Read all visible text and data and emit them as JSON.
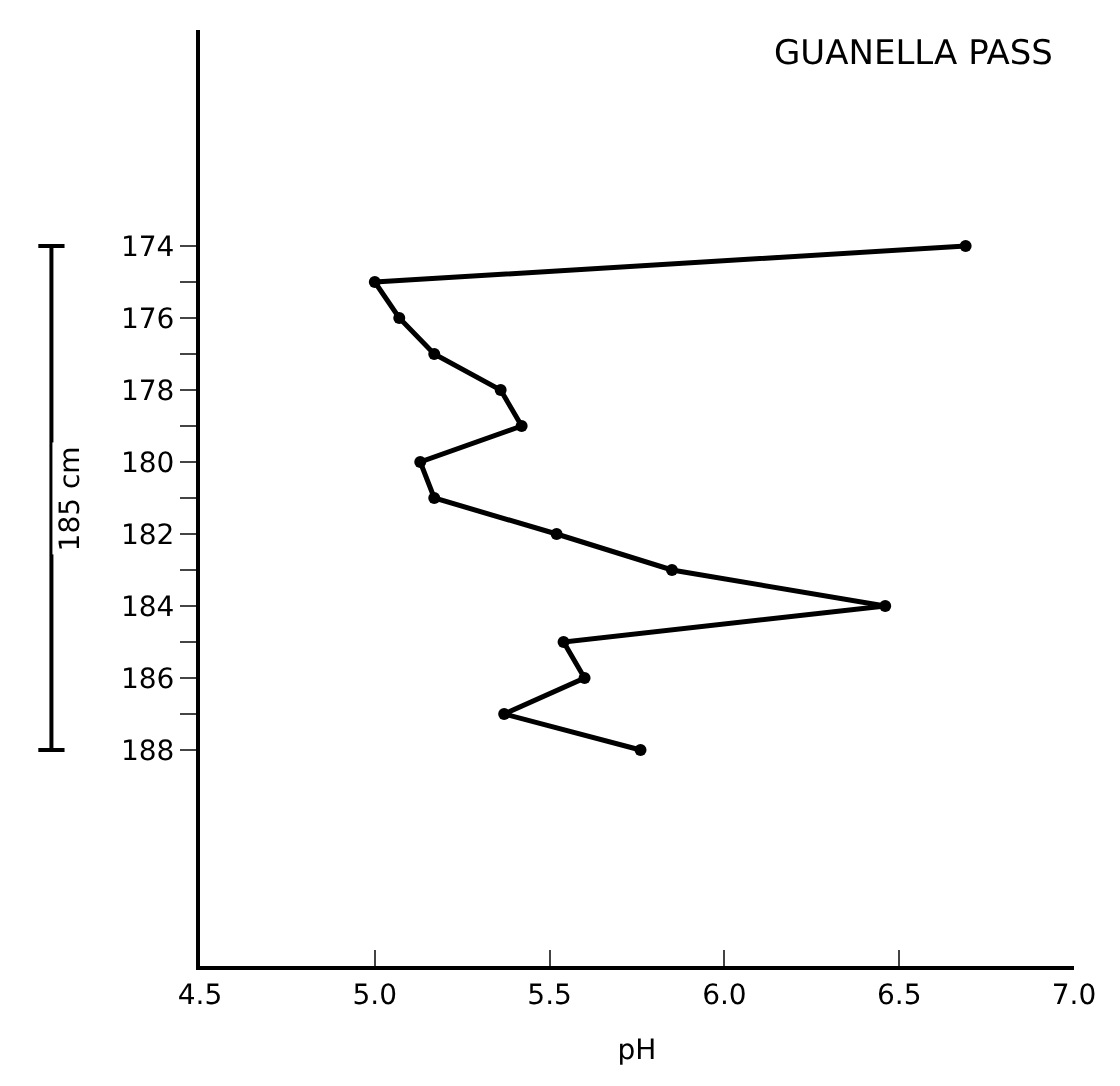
{
  "chart_data": {
    "type": "line",
    "title": "GUANELLA PASS",
    "xlabel": "pH",
    "x": [
      6.69,
      5.0,
      5.07,
      5.17,
      5.36,
      5.42,
      5.13,
      5.17,
      5.52,
      5.85,
      6.46,
      5.54,
      5.6,
      5.37,
      5.76
    ],
    "values": [
      174,
      175,
      176,
      177,
      178,
      179,
      180,
      181,
      182,
      183,
      184,
      185,
      186,
      187,
      188
    ],
    "color": "#000000",
    "marker": "circle",
    "line_style": "solid",
    "xlim": [
      4.5,
      7.0
    ],
    "xticks": [
      {
        "value": 4.5,
        "label": "4.5"
      },
      {
        "value": 5.0,
        "label": "5.0"
      },
      {
        "value": 5.5,
        "label": "5.5"
      },
      {
        "value": 6.0,
        "label": "6.0"
      },
      {
        "value": 6.5,
        "label": "6.5"
      },
      {
        "value": 7.0,
        "label": "7.0"
      }
    ],
    "ylim": [
      194,
      168
    ],
    "yticks": [
      174,
      {
        "value": 175,
        "label": null
      },
      176,
      {
        "value": 177,
        "label": null
      },
      178,
      {
        "value": 179,
        "label": null
      },
      180,
      {
        "value": 181,
        "label": null
      },
      182,
      {
        "value": 183,
        "label": null
      },
      184,
      {
        "value": 185,
        "label": null
      },
      186,
      {
        "value": 187,
        "label": null
      },
      188
    ],
    "annotations": [
      "185 cm"
    ]
  }
}
